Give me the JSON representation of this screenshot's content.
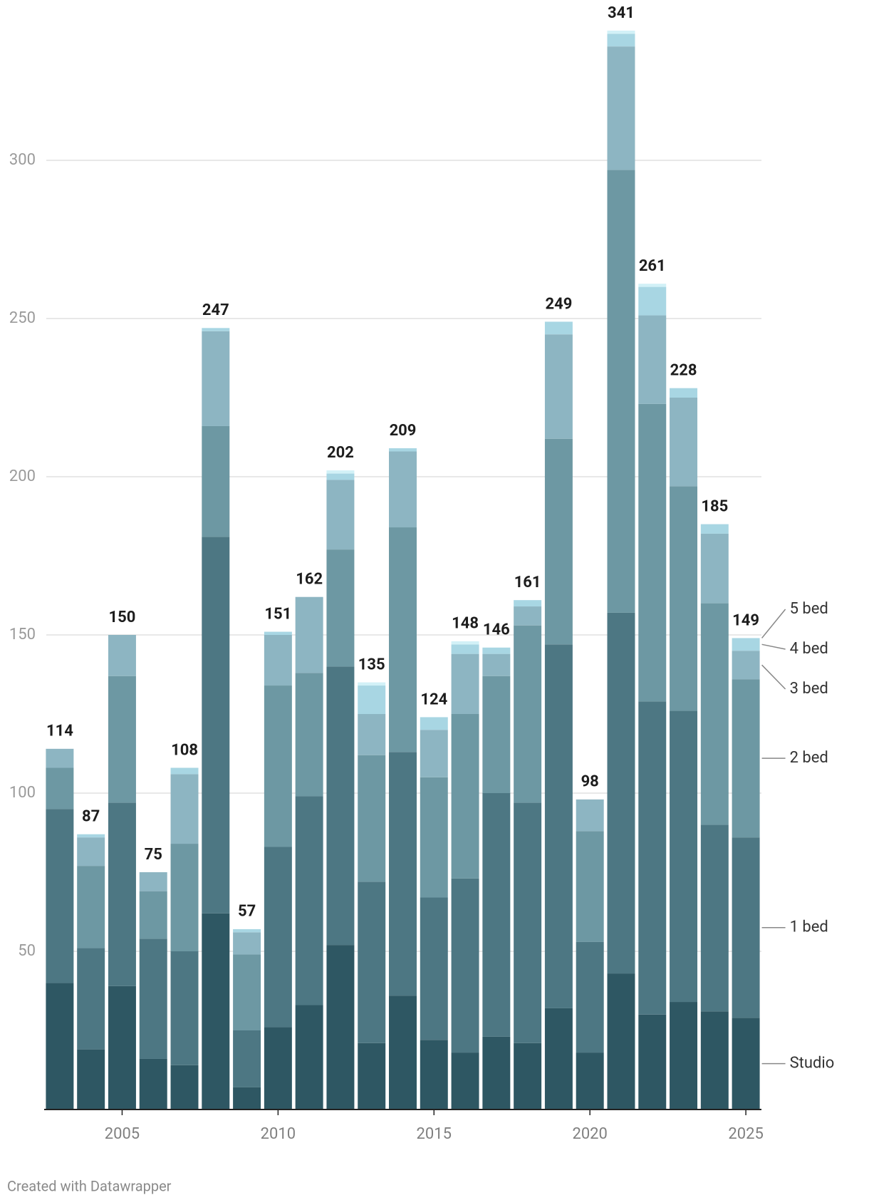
{
  "chart_data": {
    "type": "stacked_bar",
    "x": [
      2003,
      2004,
      2005,
      2006,
      2007,
      2008,
      2009,
      2010,
      2011,
      2012,
      2013,
      2014,
      2015,
      2016,
      2017,
      2018,
      2019,
      2020,
      2021,
      2022,
      2023,
      2024,
      2025
    ],
    "series": [
      {
        "name": "Studio",
        "color": "#2e5763",
        "values": [
          40,
          19,
          39,
          16,
          14,
          62,
          7,
          26,
          33,
          52,
          21,
          36,
          22,
          18,
          23,
          21,
          32,
          18,
          43,
          30,
          34,
          31,
          29
        ]
      },
      {
        "name": "1 bed",
        "color": "#4d7783",
        "values": [
          55,
          32,
          58,
          38,
          36,
          119,
          18,
          57,
          66,
          88,
          51,
          77,
          45,
          55,
          77,
          76,
          115,
          35,
          114,
          99,
          92,
          59,
          57
        ]
      },
      {
        "name": "2 bed",
        "color": "#6d98a3",
        "values": [
          13,
          26,
          40,
          15,
          34,
          35,
          24,
          51,
          39,
          37,
          40,
          71,
          38,
          52,
          37,
          56,
          65,
          35,
          140,
          94,
          71,
          70,
          50
        ]
      },
      {
        "name": "3 bed",
        "color": "#8db5c2",
        "values": [
          6,
          9,
          13,
          6,
          22,
          30,
          7,
          16,
          24,
          22,
          13,
          24,
          15,
          19,
          7,
          6,
          33,
          10,
          39,
          28,
          28,
          22,
          9
        ]
      },
      {
        "name": "4 bed",
        "color": "#a8d6e3",
        "values": [
          0,
          1,
          0,
          0,
          2,
          1,
          1,
          1,
          0,
          2,
          9,
          1,
          4,
          3,
          2,
          2,
          4,
          0,
          4,
          9,
          3,
          3,
          4
        ]
      },
      {
        "name": "5 bed",
        "color": "#d2f1f7",
        "values": [
          0,
          0,
          0,
          0,
          0,
          0,
          0,
          0,
          0,
          1,
          1,
          0,
          0,
          1,
          0,
          0,
          0,
          0,
          1,
          1,
          0,
          0,
          0
        ]
      }
    ],
    "totals": [
      114,
      87,
      150,
      75,
      108,
      247,
      57,
      151,
      162,
      202,
      135,
      209,
      124,
      148,
      146,
      161,
      249,
      98,
      341,
      261,
      228,
      185,
      149
    ],
    "xlim": [
      2002.5,
      2025.5
    ],
    "xticks": [
      2005,
      2010,
      2015,
      2020,
      2025
    ],
    "ylim": [
      0,
      350
    ],
    "yticks": [
      50,
      100,
      150,
      200,
      250,
      300
    ],
    "grid": true,
    "legend": "right",
    "footer": "Created with Datawrapper"
  }
}
